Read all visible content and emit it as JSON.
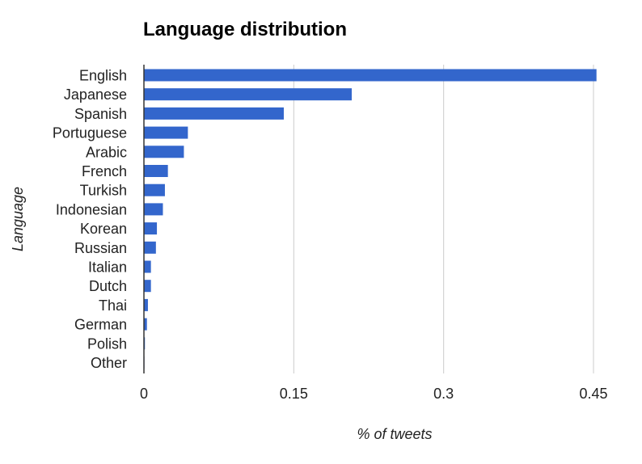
{
  "chart_data": {
    "type": "bar",
    "orientation": "horizontal",
    "title": "Language distribution",
    "xlabel": "% of tweets",
    "ylabel": "Language",
    "categories": [
      "English",
      "Japanese",
      "Spanish",
      "Portuguese",
      "Arabic",
      "French",
      "Turkish",
      "Indonesian",
      "Korean",
      "Russian",
      "Italian",
      "Dutch",
      "Thai",
      "German",
      "Polish",
      "Other"
    ],
    "values": [
      0.453,
      0.208,
      0.14,
      0.044,
      0.04,
      0.024,
      0.021,
      0.019,
      0.013,
      0.012,
      0.007,
      0.007,
      0.004,
      0.003,
      0.001,
      0.0005
    ],
    "xlim": [
      0,
      0.45
    ],
    "xticks": [
      0,
      0.15,
      0.3,
      0.45
    ],
    "xtick_labels": [
      "0",
      "0.15",
      "0.3",
      "0.45"
    ],
    "grid": true,
    "legend": "none",
    "colors": {
      "bar": "#3366cc",
      "grid": "#cccccc",
      "axis": "#333333",
      "text": "#222222"
    }
  }
}
